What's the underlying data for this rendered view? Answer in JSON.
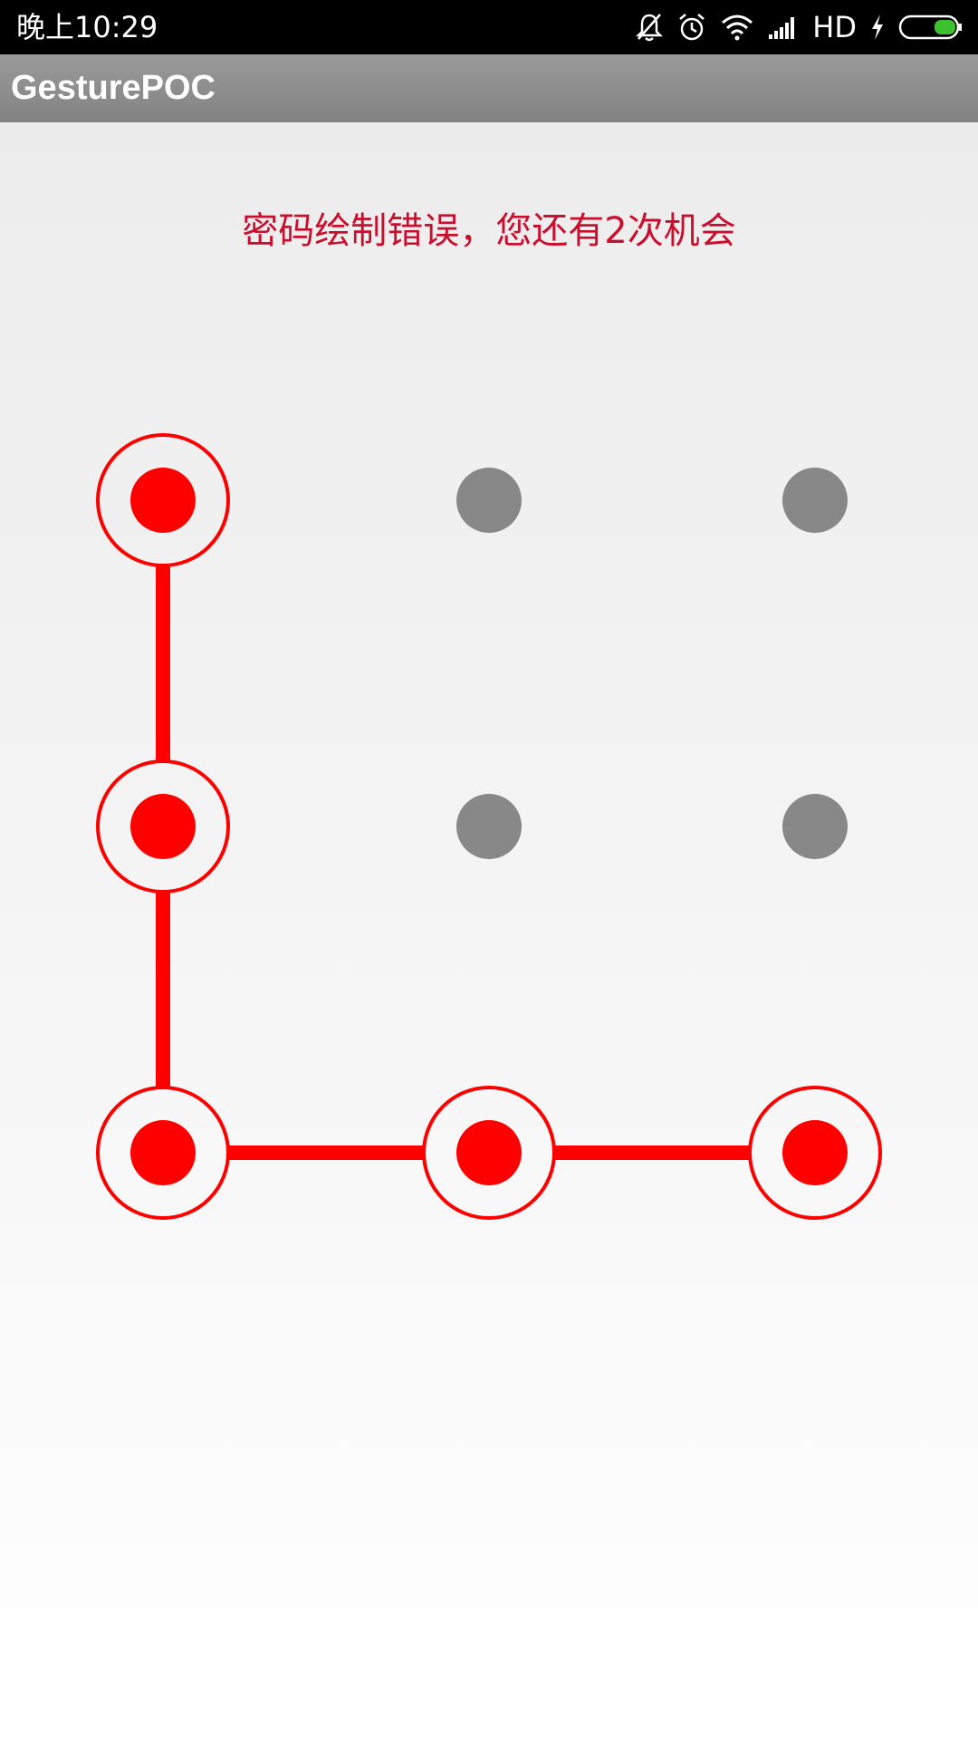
{
  "status_bar": {
    "time": "晚上10:29",
    "network_label": "HD",
    "icons": [
      "bell-off-icon",
      "alarm-clock-icon",
      "wifi-icon",
      "signal-icon",
      "charging-bolt-icon",
      "battery-icon"
    ]
  },
  "app_bar": {
    "title": "GesturePOC"
  },
  "gesture": {
    "message": "密码绘制错误，您还有2次机会",
    "error_color": "#ff0000",
    "idle_color": "#888888",
    "dots": [
      {
        "row": 0,
        "col": 0,
        "selected": true
      },
      {
        "row": 0,
        "col": 1,
        "selected": false
      },
      {
        "row": 0,
        "col": 2,
        "selected": false
      },
      {
        "row": 1,
        "col": 0,
        "selected": true
      },
      {
        "row": 1,
        "col": 1,
        "selected": false
      },
      {
        "row": 1,
        "col": 2,
        "selected": false
      },
      {
        "row": 2,
        "col": 0,
        "selected": true
      },
      {
        "row": 2,
        "col": 1,
        "selected": true
      },
      {
        "row": 2,
        "col": 2,
        "selected": true
      }
    ],
    "path": [
      [
        0,
        0
      ],
      [
        1,
        0
      ],
      [
        2,
        0
      ],
      [
        2,
        1
      ],
      [
        2,
        2
      ]
    ]
  }
}
